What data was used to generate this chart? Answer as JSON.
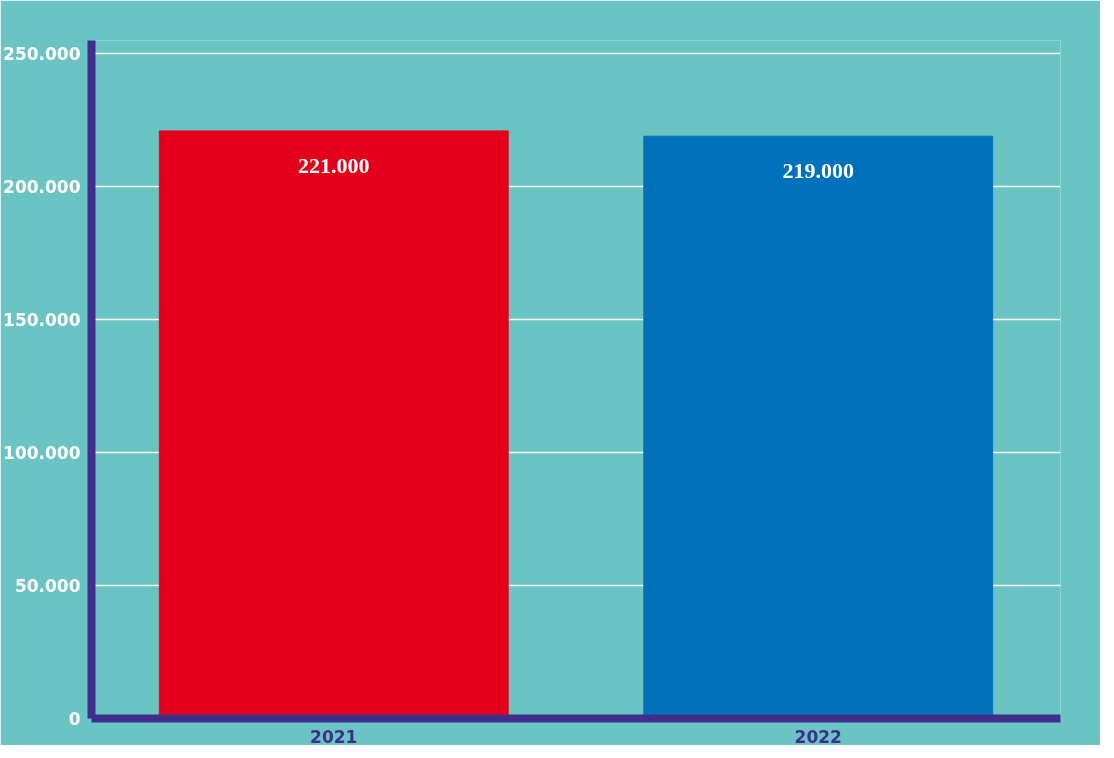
{
  "chart_data": {
    "type": "bar",
    "categories": [
      "2021",
      "2022"
    ],
    "values": [
      221000,
      219000
    ],
    "colors": [
      "#e2001a",
      "#0072bc"
    ],
    "value_labels": [
      "221.000",
      "219.000"
    ],
    "ylim": [
      0,
      255000
    ],
    "yticks": [
      {
        "value": 0,
        "label": "0"
      },
      {
        "value": 50000,
        "label": "50.000"
      },
      {
        "value": 100000,
        "label": "100.000"
      },
      {
        "value": 150000,
        "label": "150.000"
      },
      {
        "value": 200000,
        "label": "200.000"
      },
      {
        "value": 250000,
        "label": "250.000"
      }
    ],
    "grid": "y"
  }
}
